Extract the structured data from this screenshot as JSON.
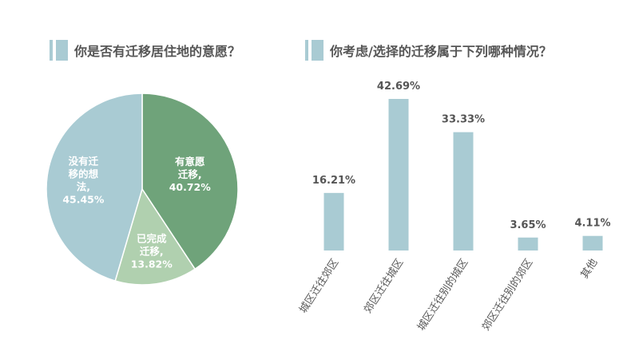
{
  "left_chart": {
    "title": "你是否有迁移居住地的意愿？"
  },
  "right_chart": {
    "title": "你考虑/选择的迁移属于下列哪种情况？"
  },
  "chart_data": [
    {
      "type": "pie",
      "title": "你是否有迁移居住地的意愿？",
      "slices": [
        {
          "label_lines": [
            "有意愿",
            "迁移,"
          ],
          "value": 40.72,
          "value_text": "40.72%",
          "color": "#6fa37a"
        },
        {
          "label_lines": [
            "已完成",
            "迁移,"
          ],
          "value": 13.82,
          "value_text": "13.82%",
          "color": "#b0d0af"
        },
        {
          "label_lines": [
            "没有迁",
            "移的想",
            "法,"
          ],
          "value": 45.45,
          "value_text": "45.45%",
          "color": "#a9cbd3"
        }
      ]
    },
    {
      "type": "bar",
      "title": "你考虑/选择的迁移属于下列哪种情况？",
      "categories": [
        "城区迁往郊区",
        "郊区迁往城区",
        "城区迁往别的城区",
        "郊区迁往别的郊区",
        "其他"
      ],
      "values": [
        16.21,
        42.69,
        33.33,
        3.65,
        4.11
      ],
      "value_labels": [
        "16.21%",
        "42.69%",
        "33.33%",
        "3.65%",
        "4.11%"
      ],
      "color": "#a9cbd3",
      "grid": false
    }
  ]
}
